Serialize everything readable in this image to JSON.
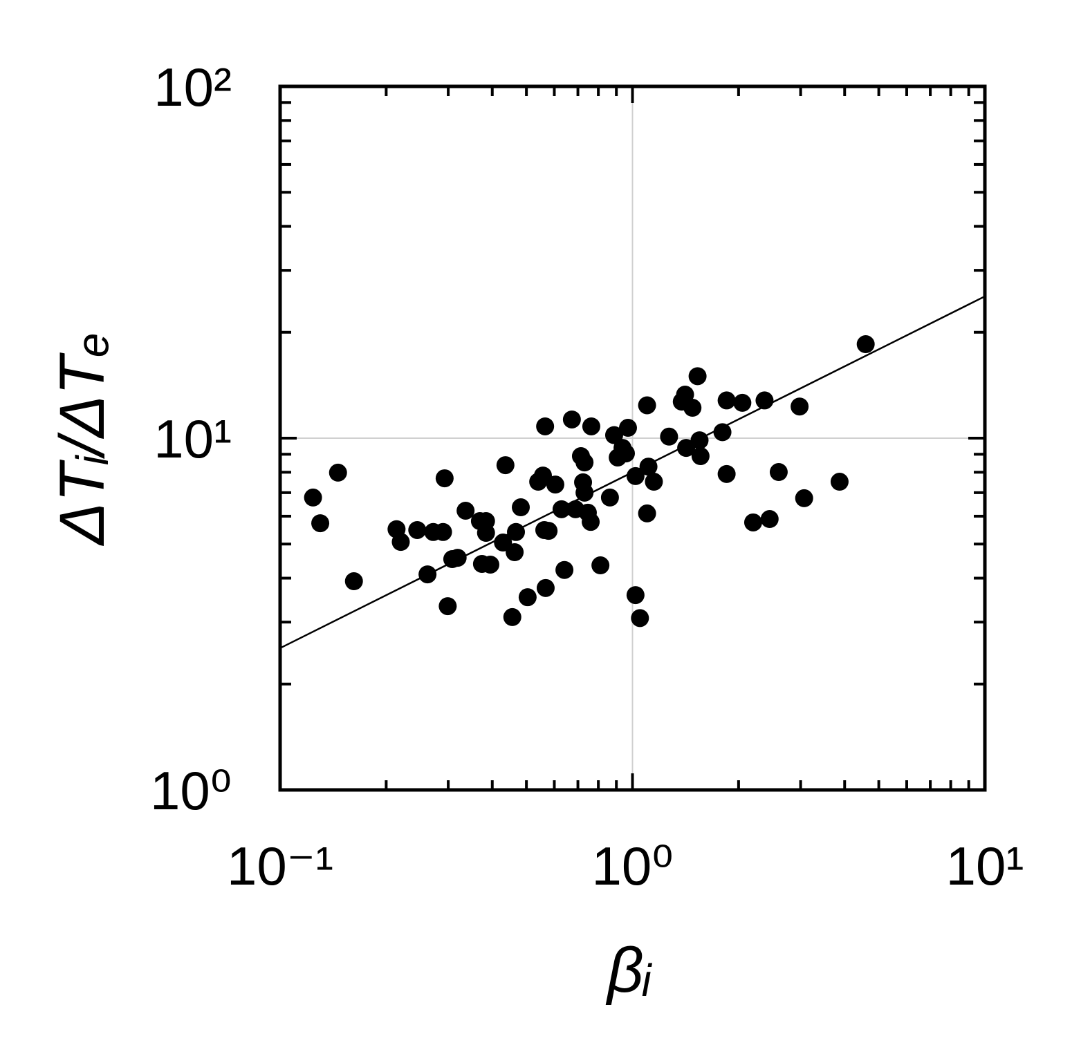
{
  "chart_data": {
    "type": "scatter",
    "xlabel": "βᵢ",
    "ylabel": "ΔTᵢ/ΔTₑ",
    "xscale": "log",
    "yscale": "log",
    "grid": true,
    "color": "#000000",
    "xlim": [
      0.1,
      10
    ],
    "ylim": [
      1,
      100
    ],
    "xticks": [
      {
        "value": 0.1,
        "label": "10⁻¹"
      },
      {
        "value": 1,
        "label": "10⁰"
      },
      {
        "value": 10,
        "label": "10¹"
      }
    ],
    "yticks": [
      {
        "value": 1,
        "label": "10⁰"
      },
      {
        "value": 10,
        "label": "10¹"
      },
      {
        "value": 100,
        "label": "10²"
      }
    ],
    "xminorticks": [
      0.2,
      0.3,
      0.4,
      0.5,
      0.6,
      0.7,
      0.8,
      0.9,
      2,
      3,
      4,
      5,
      6,
      7,
      8,
      9
    ],
    "yminorticks": [
      2,
      3,
      4,
      5,
      6,
      7,
      8,
      9,
      20,
      30,
      40,
      50,
      60,
      70,
      80,
      90
    ],
    "points": {
      "x": [
        0.124,
        0.13,
        0.146,
        0.162,
        0.214,
        0.22,
        0.245,
        0.272,
        0.29,
        0.293,
        0.262,
        0.299,
        0.308,
        0.319,
        0.336,
        0.369,
        0.384,
        0.384,
        0.374,
        0.395,
        0.429,
        0.436,
        0.456,
        0.463,
        0.467,
        0.482,
        0.504,
        0.54,
        0.557,
        0.565,
        0.562,
        0.578,
        0.567,
        0.604,
        0.629,
        0.641,
        0.673,
        0.689,
        0.714,
        0.731,
        0.724,
        0.731,
        0.747,
        0.761,
        0.764,
        0.811,
        0.863,
        0.887,
        0.908,
        0.937,
        0.958,
        0.971,
        1.02,
        1.05,
        1.02,
        1.1,
        1.11,
        1.1,
        1.15,
        1.27,
        1.38,
        1.41,
        1.48,
        1.42,
        1.53,
        1.55,
        1.56,
        1.8,
        1.85,
        1.85,
        2.05,
        2.2,
        2.37,
        2.45,
        2.6,
        2.98,
        3.07,
        3.87,
        4.59
      ],
      "y": [
        6.78,
        5.73,
        7.98,
        3.92,
        5.51,
        5.07,
        5.48,
        5.41,
        5.41,
        7.69,
        4.1,
        3.33,
        4.53,
        4.57,
        6.22,
        5.81,
        5.81,
        5.38,
        4.39,
        4.37,
        5.05,
        8.38,
        3.1,
        4.74,
        5.41,
        6.36,
        3.53,
        7.52,
        7.83,
        10.8,
        5.48,
        5.45,
        3.75,
        7.38,
        6.28,
        4.22,
        11.3,
        6.28,
        8.89,
        8.53,
        7.49,
        7.0,
        6.14,
        5.78,
        10.8,
        4.35,
        6.78,
        10.2,
        8.81,
        9.38,
        9.05,
        10.7,
        3.58,
        3.08,
        7.8,
        12.4,
        8.3,
        6.11,
        7.52,
        10.1,
        12.7,
        13.3,
        12.2,
        9.38,
        15.0,
        9.86,
        8.89,
        10.4,
        12.8,
        7.91,
        12.6,
        5.76,
        12.8,
        5.89,
        8.01,
        12.3,
        6.75,
        7.52,
        18.5
      ]
    },
    "fit_line": {
      "x": [
        0.1,
        10
      ],
      "y": [
        2.53,
        25.3
      ]
    }
  }
}
